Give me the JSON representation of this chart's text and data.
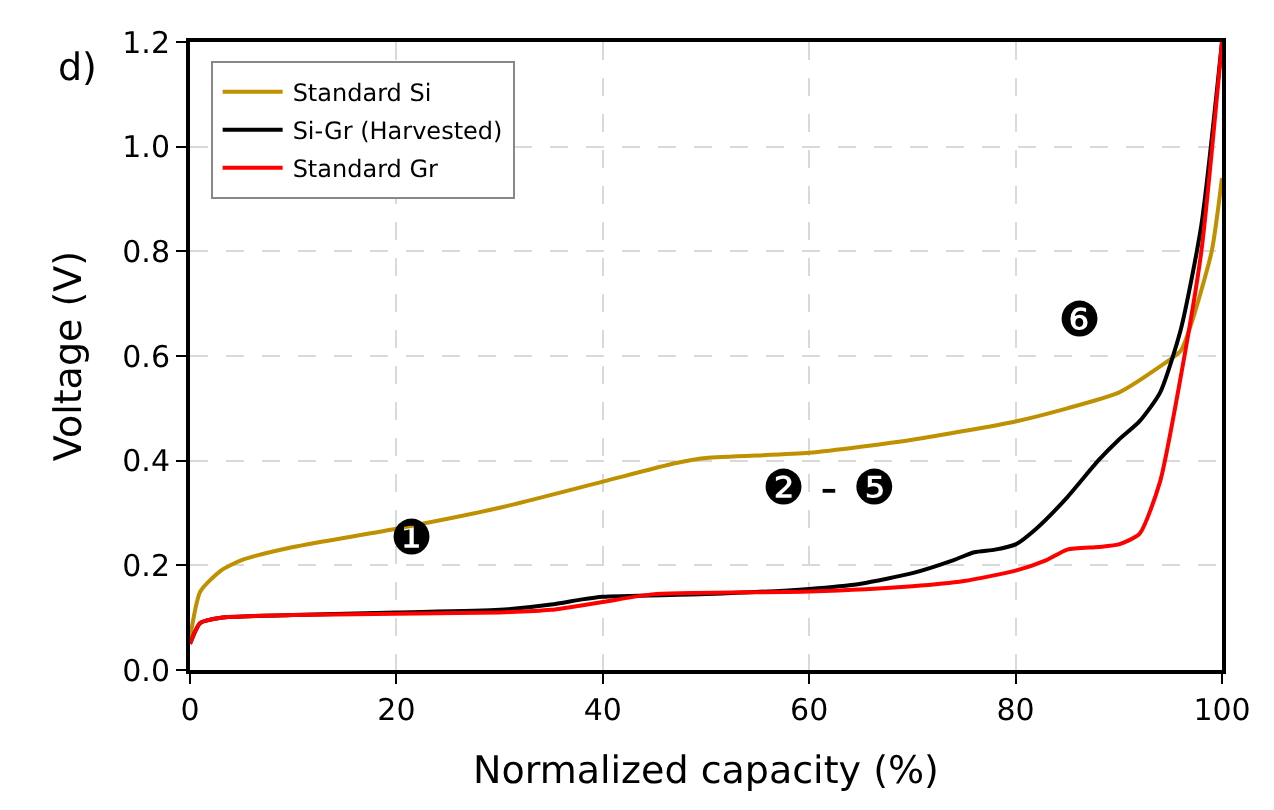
{
  "chart_data": {
    "type": "line",
    "xlabel": "Normalized capacity (%)",
    "ylabel": "Voltage (V)",
    "xlim": [
      0,
      100
    ],
    "ylim": [
      0,
      1.2
    ],
    "xticks": [
      0,
      20,
      40,
      60,
      80,
      100
    ],
    "yticks": [
      {
        "value": 0,
        "label": "0.0"
      },
      0.2,
      0.4,
      0.6,
      0.8,
      {
        "value": 1,
        "label": "1.0"
      },
      1.2
    ],
    "grid": true,
    "legend": "top left",
    "marker": "none",
    "line_style": "solid",
    "annotations": [
      "d)",
      "❶",
      "❷ - ❺",
      "❻"
    ],
    "series": [
      {
        "name": "Standard Si",
        "color": "#bf9000",
        "x": [
          0,
          1,
          3,
          5,
          10,
          20,
          30,
          40,
          47,
          50,
          60,
          70,
          80,
          85,
          90,
          94,
          96,
          97,
          99,
          100
        ],
        "values": [
          0.06,
          0.15,
          0.19,
          0.21,
          0.235,
          0.27,
          0.31,
          0.36,
          0.395,
          0.405,
          0.415,
          0.44,
          0.475,
          0.5,
          0.53,
          0.58,
          0.61,
          0.66,
          0.8,
          0.94
        ]
      },
      {
        "name": "Si-Gr (Harvested)",
        "color": "#000000",
        "x": [
          0,
          1,
          3,
          10,
          20,
          30,
          35,
          38,
          40,
          50,
          60,
          65,
          70,
          74,
          76,
          78,
          80,
          82,
          85,
          88,
          90,
          92,
          94,
          96,
          98,
          100
        ],
        "values": [
          0.05,
          0.09,
          0.1,
          0.105,
          0.11,
          0.115,
          0.125,
          0.135,
          0.14,
          0.145,
          0.155,
          0.165,
          0.185,
          0.21,
          0.225,
          0.23,
          0.24,
          0.27,
          0.33,
          0.4,
          0.44,
          0.475,
          0.53,
          0.65,
          0.85,
          1.2
        ]
      },
      {
        "name": "Standard Gr",
        "color": "#ff0000",
        "x": [
          0,
          1,
          3,
          10,
          30,
          35,
          40,
          45,
          60,
          70,
          75,
          80,
          83,
          85,
          88,
          90,
          92,
          94,
          96,
          98,
          100
        ],
        "values": [
          0.05,
          0.09,
          0.1,
          0.105,
          0.11,
          0.115,
          0.13,
          0.145,
          0.15,
          0.16,
          0.17,
          0.19,
          0.21,
          0.23,
          0.235,
          0.24,
          0.26,
          0.36,
          0.56,
          0.8,
          1.2
        ]
      }
    ]
  }
}
